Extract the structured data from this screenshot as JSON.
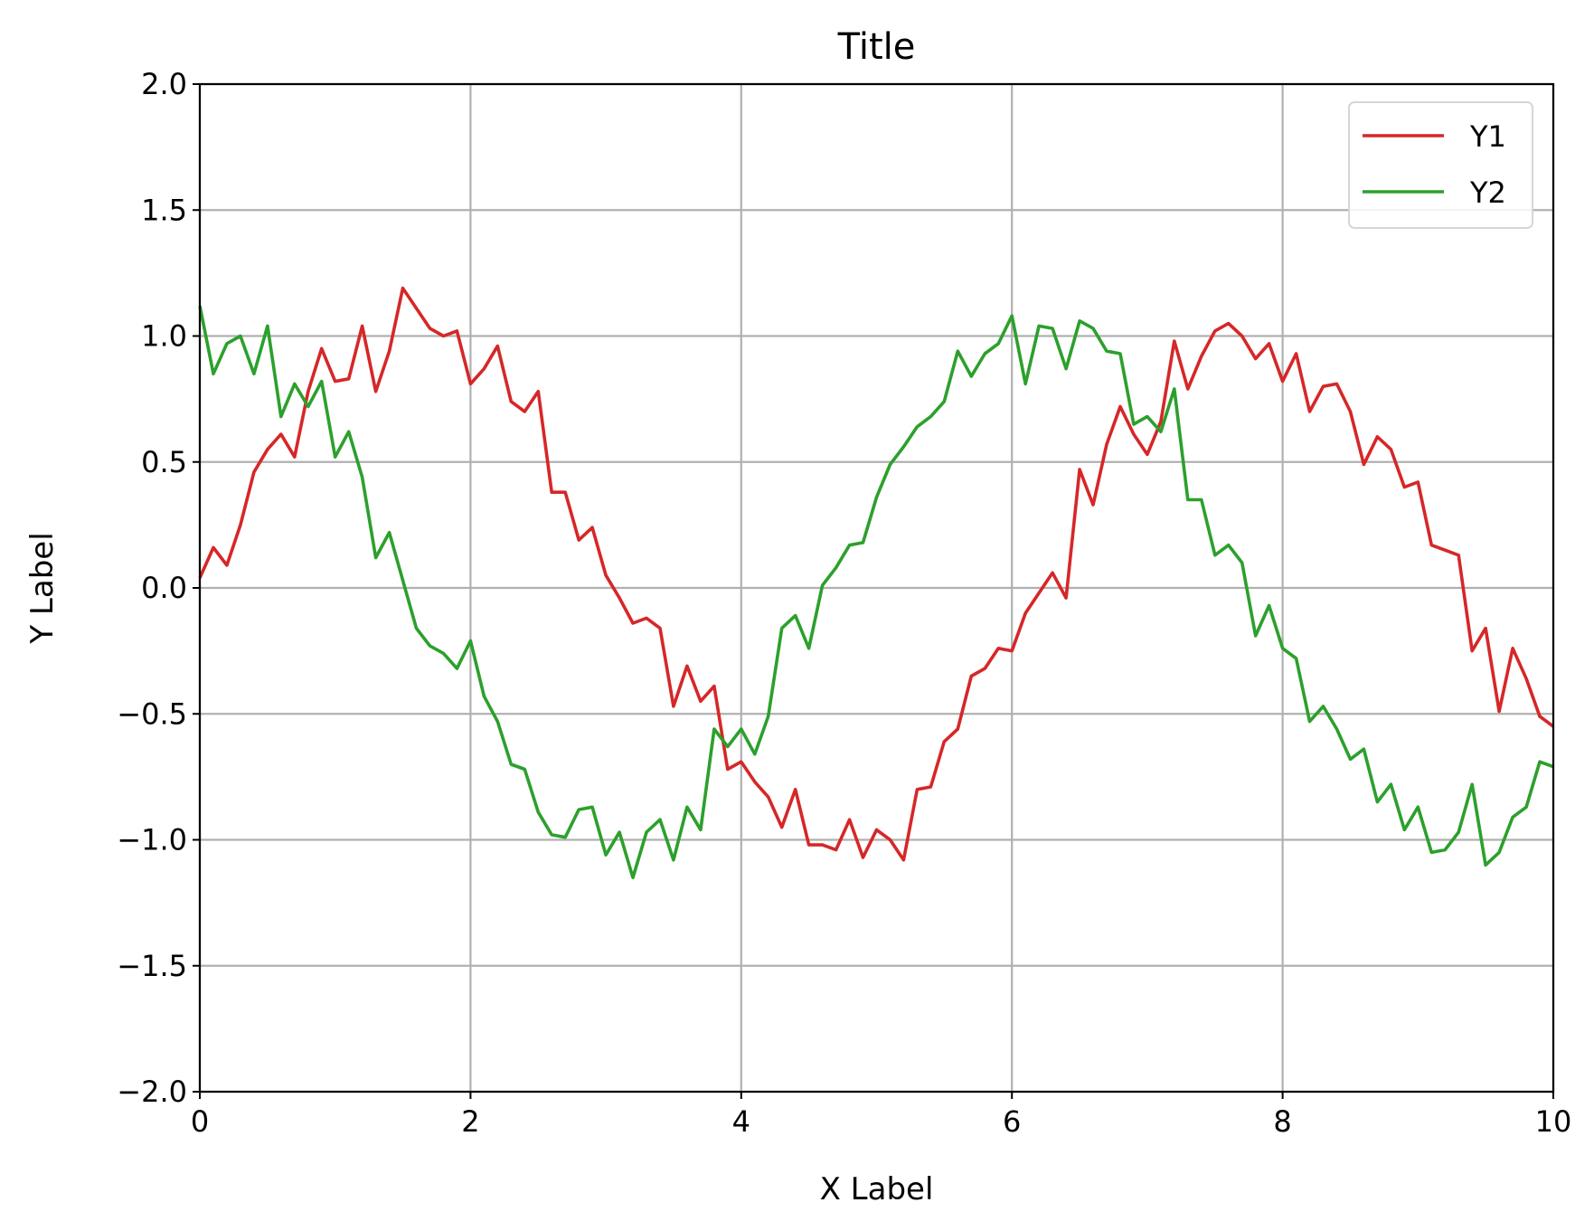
{
  "chart_data": {
    "type": "line",
    "title": "Title",
    "xlabel": "X Label",
    "ylabel": "Y Label",
    "xlim": [
      0,
      10
    ],
    "ylim": [
      -2,
      2
    ],
    "xticks": [
      0,
      2,
      4,
      6,
      8,
      10
    ],
    "xtick_labels": [
      "0",
      "2",
      "4",
      "6",
      "8",
      "10"
    ],
    "yticks": [
      -2,
      -1.5,
      -1,
      -0.5,
      0,
      0.5,
      1,
      1.5,
      2
    ],
    "ytick_labels": [
      "−2.0",
      "−1.5",
      "−1.0",
      "−0.5",
      "0.0",
      "0.5",
      "1.0",
      "1.5",
      "2.0"
    ],
    "grid": true,
    "legend_position": "top-right",
    "x": [
      0,
      0.1,
      0.2,
      0.3,
      0.4,
      0.5,
      0.6,
      0.7,
      0.8,
      0.9,
      1.0,
      1.1,
      1.2,
      1.3,
      1.4,
      1.5,
      1.6,
      1.7,
      1.8,
      1.9,
      2.0,
      2.1,
      2.2,
      2.3,
      2.4,
      2.5,
      2.6,
      2.7,
      2.8,
      2.9,
      3.0,
      3.1,
      3.2,
      3.3,
      3.4,
      3.5,
      3.6,
      3.7,
      3.8,
      3.9,
      4.0,
      4.1,
      4.2,
      4.3,
      4.4,
      4.5,
      4.6,
      4.7,
      4.8,
      4.9,
      5.0,
      5.1,
      5.2,
      5.3,
      5.4,
      5.5,
      5.6,
      5.7,
      5.8,
      5.9,
      6.0,
      6.1,
      6.2,
      6.3,
      6.4,
      6.5,
      6.6,
      6.7,
      6.8,
      6.9,
      7.0,
      7.1,
      7.2,
      7.3,
      7.4,
      7.5,
      7.6,
      7.7,
      7.8,
      7.9,
      8.0,
      8.1,
      8.2,
      8.3,
      8.4,
      8.5,
      8.6,
      8.7,
      8.8,
      8.9,
      9.0,
      9.1,
      9.2,
      9.3,
      9.4,
      9.5,
      9.6,
      9.7,
      9.8,
      9.9,
      10.0
    ],
    "series": [
      {
        "name": "Y1",
        "color": "#d62728",
        "values": [
          0.04,
          0.16,
          0.09,
          0.25,
          0.46,
          0.55,
          0.61,
          0.52,
          0.78,
          0.95,
          0.82,
          0.83,
          1.04,
          0.78,
          0.94,
          1.19,
          1.11,
          1.03,
          1.0,
          1.02,
          0.81,
          0.87,
          0.96,
          0.74,
          0.7,
          0.78,
          0.38,
          0.38,
          0.19,
          0.24,
          0.05,
          -0.04,
          -0.14,
          -0.12,
          -0.16,
          -0.47,
          -0.31,
          -0.45,
          -0.39,
          -0.72,
          -0.69,
          -0.77,
          -0.83,
          -0.95,
          -0.8,
          -1.02,
          -1.02,
          -1.04,
          -0.92,
          -1.07,
          -0.96,
          -1.0,
          -1.08,
          -0.8,
          -0.79,
          -0.61,
          -0.56,
          -0.35,
          -0.32,
          -0.24,
          -0.25,
          -0.1,
          -0.02,
          0.06,
          -0.04,
          0.47,
          0.33,
          0.57,
          0.72,
          0.61,
          0.53,
          0.66,
          0.98,
          0.79,
          0.92,
          1.02,
          1.05,
          1.0,
          0.91,
          0.97,
          0.82,
          0.93,
          0.7,
          0.8,
          0.81,
          0.7,
          0.49,
          0.6,
          0.55,
          0.4,
          0.42,
          0.17,
          0.15,
          0.13,
          -0.25,
          -0.16,
          -0.49,
          -0.24,
          -0.36,
          -0.51,
          -0.55
        ]
      },
      {
        "name": "Y2",
        "color": "#2ca02c",
        "values": [
          1.12,
          0.85,
          0.97,
          1.0,
          0.85,
          1.04,
          0.68,
          0.81,
          0.72,
          0.82,
          0.52,
          0.62,
          0.44,
          0.12,
          0.22,
          0.03,
          -0.16,
          -0.23,
          -0.26,
          -0.32,
          -0.21,
          -0.43,
          -0.53,
          -0.7,
          -0.72,
          -0.89,
          -0.98,
          -0.99,
          -0.88,
          -0.87,
          -1.06,
          -0.97,
          -1.15,
          -0.97,
          -0.92,
          -1.08,
          -0.87,
          -0.96,
          -0.56,
          -0.63,
          -0.56,
          -0.66,
          -0.51,
          -0.16,
          -0.11,
          -0.24,
          0.01,
          0.08,
          0.17,
          0.18,
          0.36,
          0.49,
          0.56,
          0.64,
          0.68,
          0.74,
          0.94,
          0.84,
          0.93,
          0.97,
          1.08,
          0.81,
          1.04,
          1.03,
          0.87,
          1.06,
          1.03,
          0.94,
          0.93,
          0.65,
          0.68,
          0.62,
          0.79,
          0.35,
          0.35,
          0.13,
          0.17,
          0.1,
          -0.19,
          -0.07,
          -0.24,
          -0.28,
          -0.53,
          -0.47,
          -0.56,
          -0.68,
          -0.64,
          -0.85,
          -0.78,
          -0.96,
          -0.87,
          -1.05,
          -1.04,
          -0.97,
          -0.78,
          -1.1,
          -1.05,
          -0.91,
          -0.87,
          -0.69,
          -0.71
        ]
      }
    ]
  }
}
